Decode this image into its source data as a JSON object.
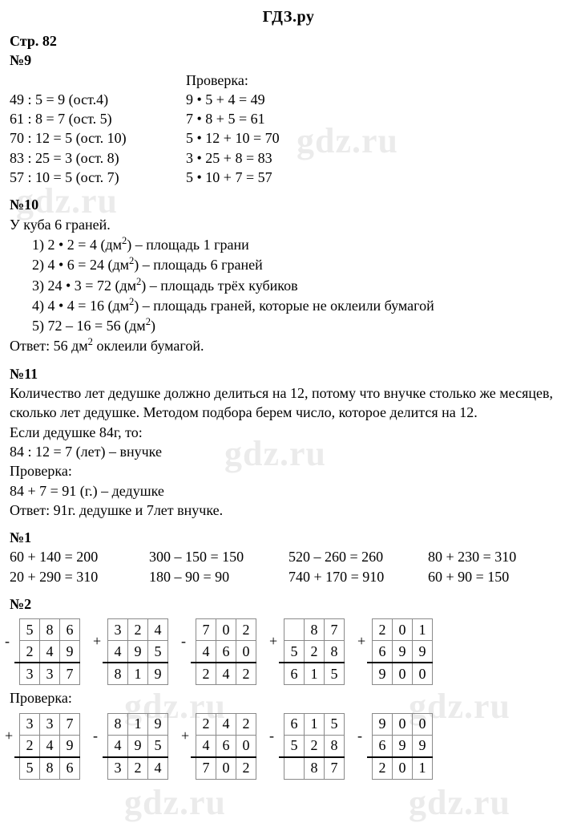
{
  "site_title": "ГДЗ.ру",
  "page_label": "Стр. 82",
  "watermarks": [
    "gdz.ru",
    "gdz.ru",
    "gdz.ru",
    "gdz.ru",
    "gdz.ru",
    "gdz.ru",
    "gdz.ru"
  ],
  "ex9": {
    "title": "№9",
    "check_label": "Проверка:",
    "left": [
      "49 : 5 = 9 (ост.4)",
      "61 : 8 = 7 (ост. 5)",
      "70 : 12 = 5 (ост. 10)",
      "83 : 25 = 3 (ост. 8)",
      "57 : 10 = 5 (ост. 7)"
    ],
    "right": [
      "9 • 5 + 4 = 49",
      "7 • 8 + 5 = 61",
      "5 • 12 + 10 = 70",
      "3 • 25 + 8 = 83",
      "5 • 10 + 7 = 57"
    ]
  },
  "ex10": {
    "title": "№10",
    "intro": "У куба 6 граней.",
    "items": [
      {
        "n": "1)",
        "expr": "2 • 2 = 4 (дм",
        "tail": ") – площадь 1 грани"
      },
      {
        "n": "2)",
        "expr": "4 • 6 = 24 (дм",
        "tail": ") – площадь 6 граней"
      },
      {
        "n": "3)",
        "expr": "24 • 3 = 72 (дм",
        "tail": ") – площадь трёх кубиков"
      },
      {
        "n": "4)",
        "expr": "4 • 4 = 16 (дм",
        "tail": ") – площадь граней, которые не оклеили бумагой"
      },
      {
        "n": "5)",
        "expr": "72 – 16 = 56 (дм",
        "tail": ")"
      }
    ],
    "answer_pre": "Ответ: 56 дм",
    "answer_post": " оклеили бумагой."
  },
  "ex11": {
    "title": "№11",
    "p1": "Количество лет дедушке должно делиться на 12, потому что внучке столько же месяцев, сколько лет дедушке. Методом подбора берем число, которое делится на 12.",
    "p2": "Если дедушке 84г, то:",
    "p3": "84 : 12 = 7 (лет) – внучке",
    "p4": "Проверка:",
    "p5": "84 + 7 = 91 (г.) – дедушке",
    "p6": "Ответ: 91г. дедушке и 7лет внучке."
  },
  "ex1": {
    "title": "№1",
    "rows": [
      [
        "60 + 140 = 200",
        "300 – 150 = 150",
        "520 – 260 = 260",
        "80 + 230 = 310"
      ],
      [
        "20 + 290 = 310",
        "180 – 90 = 90",
        "740 + 170 = 910",
        "60 + 90 = 150"
      ]
    ]
  },
  "ex2": {
    "title": "№2",
    "check_label": "Проверка:",
    "row1": [
      {
        "op": "-",
        "a": [
          "5",
          "8",
          "6"
        ],
        "b": [
          "2",
          "4",
          "9"
        ],
        "r": [
          "3",
          "3",
          "7"
        ]
      },
      {
        "op": "+",
        "a": [
          "3",
          "2",
          "4"
        ],
        "b": [
          "4",
          "9",
          "5"
        ],
        "r": [
          "8",
          "1",
          "9"
        ]
      },
      {
        "op": "-",
        "a": [
          "7",
          "0",
          "2"
        ],
        "b": [
          "4",
          "6",
          "0"
        ],
        "r": [
          "2",
          "4",
          "2"
        ]
      },
      {
        "op": "+",
        "a": [
          "",
          "8",
          "7"
        ],
        "b": [
          "5",
          "2",
          "8"
        ],
        "r": [
          "6",
          "1",
          "5"
        ]
      },
      {
        "op": "+",
        "a": [
          "2",
          "0",
          "1"
        ],
        "b": [
          "6",
          "9",
          "9"
        ],
        "r": [
          "9",
          "0",
          "0"
        ]
      }
    ],
    "row2": [
      {
        "op": "+",
        "a": [
          "3",
          "3",
          "7"
        ],
        "b": [
          "2",
          "4",
          "9"
        ],
        "r": [
          "5",
          "8",
          "6"
        ]
      },
      {
        "op": "-",
        "a": [
          "8",
          "1",
          "9"
        ],
        "b": [
          "4",
          "9",
          "5"
        ],
        "r": [
          "3",
          "2",
          "4"
        ]
      },
      {
        "op": "+",
        "a": [
          "2",
          "4",
          "2"
        ],
        "b": [
          "4",
          "6",
          "0"
        ],
        "r": [
          "7",
          "0",
          "2"
        ]
      },
      {
        "op": "-",
        "a": [
          "6",
          "1",
          "5"
        ],
        "b": [
          "5",
          "2",
          "8"
        ],
        "r": [
          "",
          "8",
          "7"
        ]
      },
      {
        "op": "-",
        "a": [
          "9",
          "0",
          "0"
        ],
        "b": [
          "6",
          "9",
          "9"
        ],
        "r": [
          "2",
          "0",
          "1"
        ]
      }
    ]
  }
}
